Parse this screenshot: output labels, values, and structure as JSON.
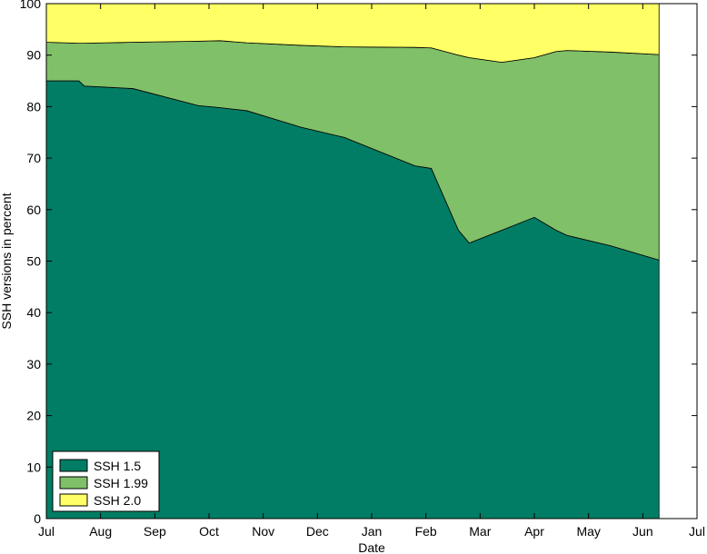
{
  "chart_data": {
    "type": "area",
    "stacked": true,
    "title": "",
    "xlabel": "Date",
    "ylabel": "SSH versions in percent",
    "ylim": [
      0,
      100
    ],
    "yticks": [
      0,
      10,
      20,
      30,
      40,
      50,
      60,
      70,
      80,
      90,
      100
    ],
    "xlim": [
      0,
      12
    ],
    "xticks": [
      {
        "pos": 0,
        "label": "Jul"
      },
      {
        "pos": 1,
        "label": "Aug"
      },
      {
        "pos": 2,
        "label": "Sep"
      },
      {
        "pos": 3,
        "label": "Oct"
      },
      {
        "pos": 4,
        "label": "Nov"
      },
      {
        "pos": 5,
        "label": "Dec"
      },
      {
        "pos": 6,
        "label": "Jan"
      },
      {
        "pos": 7,
        "label": "Feb"
      },
      {
        "pos": 8,
        "label": "Mar"
      },
      {
        "pos": 9,
        "label": "Apr"
      },
      {
        "pos": 10,
        "label": "May"
      },
      {
        "pos": 11,
        "label": "Jun"
      },
      {
        "pos": 12,
        "label": "Jul"
      }
    ],
    "x": [
      0.0,
      0.6,
      0.7,
      1.6,
      2.8,
      3.2,
      3.7,
      4.7,
      5.5,
      6.8,
      7.1,
      7.6,
      7.8,
      8.4,
      9.0,
      9.4,
      9.6,
      10.4,
      11.3
    ],
    "series": [
      {
        "name": "SSH 1.5",
        "color": "#007D64",
        "values": [
          85.0,
          85.0,
          84.0,
          83.5,
          80.2,
          79.8,
          79.2,
          76.0,
          74.0,
          68.5,
          68.0,
          56.0,
          53.5,
          56.0,
          58.5,
          56.0,
          55.0,
          53.0,
          50.2
        ]
      },
      {
        "name": "SSH 1.99",
        "color": "#80C068",
        "values": [
          7.5,
          7.3,
          8.3,
          9.0,
          12.5,
          13.0,
          13.2,
          15.9,
          17.6,
          23.0,
          23.4,
          34.0,
          36.0,
          32.6,
          31.0,
          34.7,
          35.9,
          37.6,
          39.9
        ]
      },
      {
        "name": "SSH 2.0",
        "color": "#FFFF66",
        "values": [
          7.5,
          7.7,
          7.7,
          7.5,
          7.3,
          7.2,
          7.6,
          8.1,
          8.4,
          8.5,
          8.6,
          10.0,
          10.5,
          11.4,
          10.5,
          9.3,
          9.1,
          9.4,
          9.9
        ]
      }
    ],
    "legend": {
      "position": "bottom-left",
      "entries": [
        "SSH 1.5",
        "SSH 1.99",
        "SSH 2.0"
      ]
    },
    "grid": false
  }
}
